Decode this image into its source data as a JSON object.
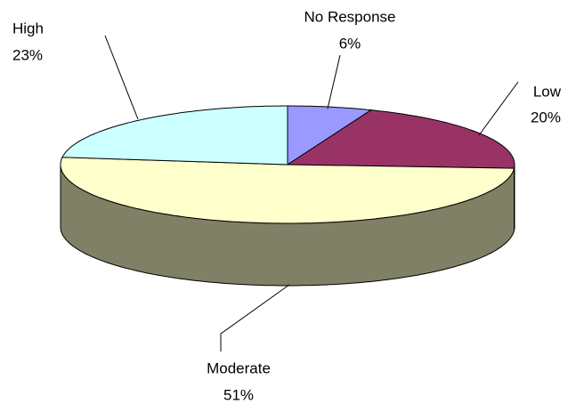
{
  "chart_data": {
    "type": "pie",
    "categories": [
      "No Response",
      "Low",
      "Moderate",
      "High"
    ],
    "values": [
      6,
      20,
      51,
      23
    ],
    "value_labels": [
      "6%",
      "20%",
      "51%",
      "23%"
    ],
    "colors": [
      "#9999ff",
      "#993366",
      "#ffffcc",
      "#ccffff"
    ]
  }
}
